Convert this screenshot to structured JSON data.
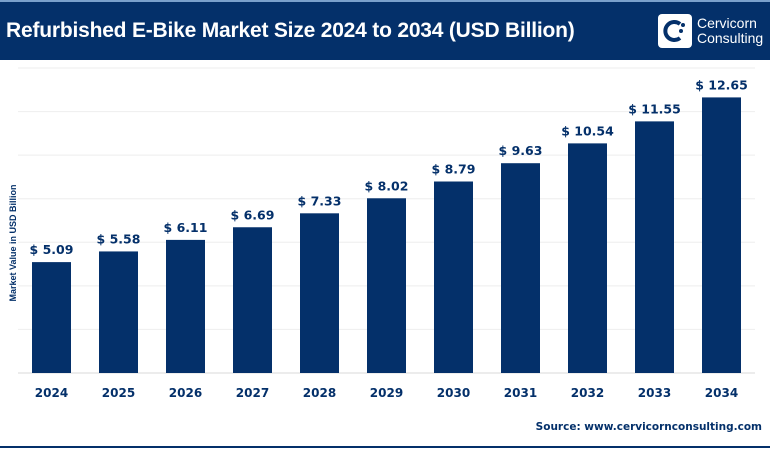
{
  "header": {
    "title": "Refurbished E-Bike Market Size 2024 to 2034 (USD Billion)",
    "logo_line1": "Cervicorn",
    "logo_line2": "Consulting"
  },
  "source": "Source: www.cervicornconsulting.com",
  "colors": {
    "bar": "#04306a",
    "header": "#04306a"
  },
  "chart_data": {
    "type": "bar",
    "title": "Refurbished E-Bike Market Size 2024 to 2034 (USD Billion)",
    "xlabel": "",
    "ylabel": "Market Value in USD Billion",
    "categories": [
      "2024",
      "2025",
      "2026",
      "2027",
      "2028",
      "2029",
      "2030",
      "2031",
      "2032",
      "2033",
      "2034"
    ],
    "values": [
      5.09,
      5.58,
      6.11,
      6.69,
      7.33,
      8.02,
      8.79,
      9.63,
      10.54,
      11.55,
      12.65
    ],
    "data_labels": [
      "$ 5.09",
      "$ 5.58",
      "$ 6.11",
      "$ 6.69",
      "$ 7.33",
      "$ 8.02",
      "$ 8.79",
      "$ 9.63",
      "$ 10.54",
      "$ 11.55",
      "$ 12.65"
    ],
    "ylim": [
      0,
      14
    ],
    "grid": true,
    "legend": "none"
  }
}
